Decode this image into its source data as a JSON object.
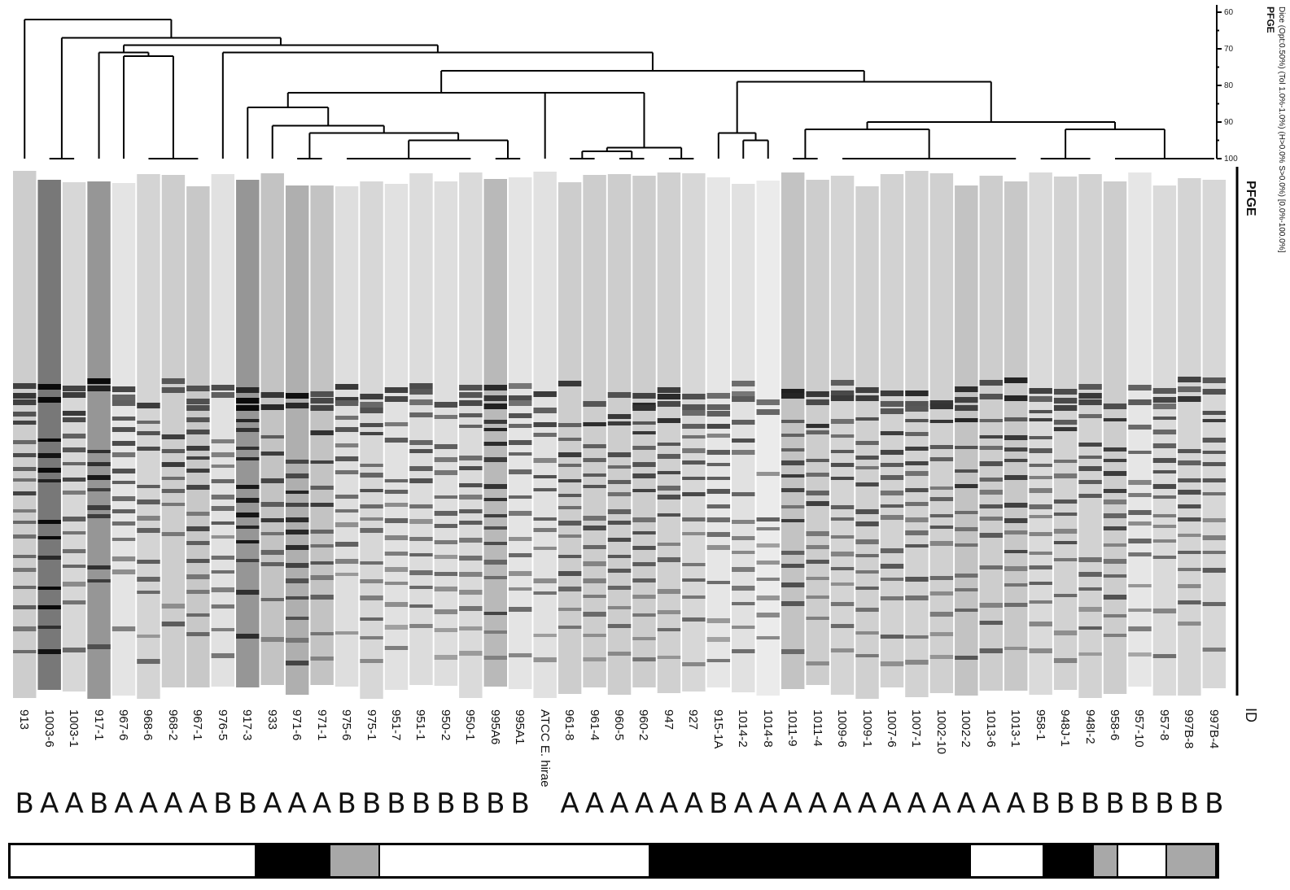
{
  "dendrogram": {
    "method_label": "Dice (Opt:0.50%) (Tol 1.0%-1.0%) (H>0.0% S>0.0%) [0.0%-100.0%]",
    "title": "PFGE",
    "scale_ticks": [
      "60",
      "70",
      "80",
      "90",
      "100"
    ]
  },
  "gel_title": "PFGE",
  "id_label": "ID",
  "lanes": [
    {
      "id": "913",
      "group": "B"
    },
    {
      "id": "1003-6",
      "group": "A"
    },
    {
      "id": "1003-1",
      "group": "A"
    },
    {
      "id": "917-1",
      "group": "B"
    },
    {
      "id": "967-6",
      "group": "A"
    },
    {
      "id": "968-6",
      "group": "A"
    },
    {
      "id": "968-2",
      "group": "A"
    },
    {
      "id": "967-1",
      "group": "A"
    },
    {
      "id": "976-5",
      "group": "B"
    },
    {
      "id": "917-3",
      "group": "B"
    },
    {
      "id": "933",
      "group": "A"
    },
    {
      "id": "971-6",
      "group": "A"
    },
    {
      "id": "971-1",
      "group": "A"
    },
    {
      "id": "975-6",
      "group": "B"
    },
    {
      "id": "975-1",
      "group": "B"
    },
    {
      "id": "951-7",
      "group": "B"
    },
    {
      "id": "951-1",
      "group": "B"
    },
    {
      "id": "950-2",
      "group": "B"
    },
    {
      "id": "950-1",
      "group": "B"
    },
    {
      "id": "995A6",
      "group": "B"
    },
    {
      "id": "995A1",
      "group": "B"
    },
    {
      "id": "ATCC E. hirae",
      "group": ""
    },
    {
      "id": "961-8",
      "group": "A"
    },
    {
      "id": "961-4",
      "group": "A"
    },
    {
      "id": "960-5",
      "group": "A"
    },
    {
      "id": "960-2",
      "group": "A"
    },
    {
      "id": "947",
      "group": "A"
    },
    {
      "id": "927",
      "group": "A"
    },
    {
      "id": "915-1A",
      "group": "B"
    },
    {
      "id": "1014-2",
      "group": "A"
    },
    {
      "id": "1014-8",
      "group": "A"
    },
    {
      "id": "1011-9",
      "group": "A"
    },
    {
      "id": "1011-4",
      "group": "A"
    },
    {
      "id": "1009-6",
      "group": "A"
    },
    {
      "id": "1009-1",
      "group": "A"
    },
    {
      "id": "1007-6",
      "group": "A"
    },
    {
      "id": "1007-1",
      "group": "A"
    },
    {
      "id": "1002-10",
      "group": "A"
    },
    {
      "id": "1002-2",
      "group": "A"
    },
    {
      "id": "1013-6",
      "group": "A"
    },
    {
      "id": "1013-1",
      "group": "A"
    },
    {
      "id": "958-1",
      "group": "B"
    },
    {
      "id": "948J-1",
      "group": "B"
    },
    {
      "id": "948I-2",
      "group": "B"
    },
    {
      "id": "958-6",
      "group": "B"
    },
    {
      "id": "957-10",
      "group": "B"
    },
    {
      "id": "957-8",
      "group": "B"
    },
    {
      "id": "997B-8",
      "group": "B"
    },
    {
      "id": "997B-4",
      "group": "B"
    }
  ],
  "cluster_bar_colors": {
    "white": "#ffffff",
    "black": "#000000",
    "gray": "#a8a8a8"
  },
  "cluster_bar_segments": [
    {
      "color": "white",
      "lanes": 10
    },
    {
      "color": "black",
      "lanes": 3
    },
    {
      "color": "gray",
      "lanes": 2
    },
    {
      "color": "white",
      "lanes": 11
    },
    {
      "color": "black",
      "lanes": 13
    },
    {
      "color": "white",
      "lanes": 3
    },
    {
      "color": "black",
      "lanes": 2
    },
    {
      "color": "gray",
      "lanes": 1
    },
    {
      "color": "white",
      "lanes": 2
    },
    {
      "color": "gray",
      "lanes": 2
    }
  ]
}
